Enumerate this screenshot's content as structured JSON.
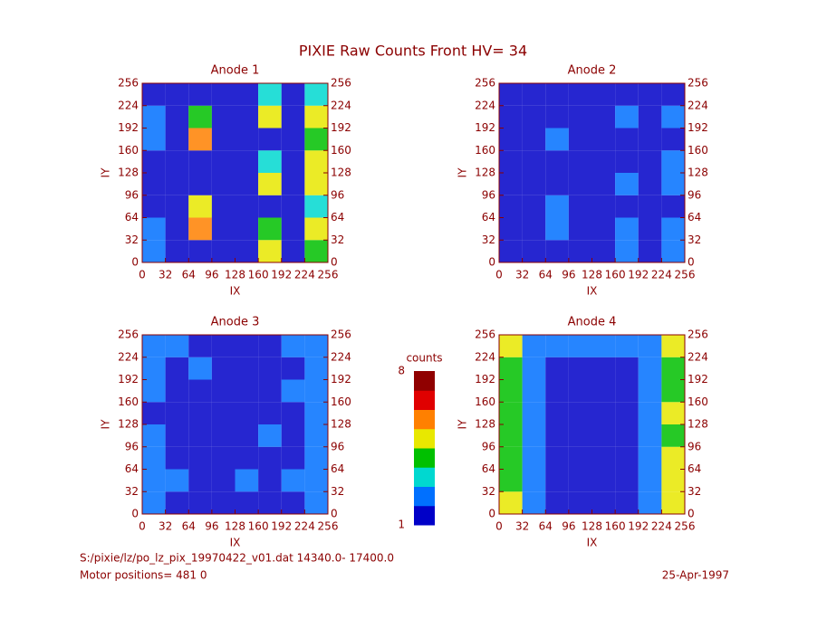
{
  "title": "PIXIE Raw Counts Front HV= 34",
  "chart_data": [
    {
      "type": "heatmap",
      "title": "Anode 1",
      "xlabel": "IX",
      "ylabel": "IY",
      "xlim": [
        0,
        256
      ],
      "ylim": [
        0,
        256
      ],
      "xticks": [
        0,
        32,
        64,
        96,
        128,
        160,
        192,
        224,
        256
      ],
      "yticks": [
        0,
        32,
        64,
        96,
        128,
        160,
        192,
        224,
        256
      ],
      "values": [
        [
          2,
          1,
          1,
          1,
          1,
          5,
          1,
          4
        ],
        [
          2,
          1,
          6,
          1,
          1,
          4,
          1,
          5
        ],
        [
          1,
          1,
          5,
          1,
          1,
          1,
          1,
          3
        ],
        [
          1,
          1,
          1,
          1,
          1,
          5,
          1,
          5
        ],
        [
          1,
          1,
          1,
          1,
          1,
          3,
          1,
          5
        ],
        [
          2,
          1,
          6,
          1,
          1,
          1,
          1,
          4
        ],
        [
          2,
          1,
          4,
          1,
          1,
          5,
          1,
          5
        ],
        [
          1,
          1,
          1,
          1,
          1,
          3,
          1,
          3
        ]
      ]
    },
    {
      "type": "heatmap",
      "title": "Anode 2",
      "xlabel": "IX",
      "ylabel": "IY",
      "xlim": [
        0,
        256
      ],
      "ylim": [
        0,
        256
      ],
      "xticks": [
        0,
        32,
        64,
        96,
        128,
        160,
        192,
        224,
        256
      ],
      "yticks": [
        0,
        32,
        64,
        96,
        128,
        160,
        192,
        224,
        256
      ],
      "values": [
        [
          1,
          1,
          1,
          1,
          1,
          2,
          1,
          2
        ],
        [
          1,
          1,
          2,
          1,
          1,
          2,
          1,
          2
        ],
        [
          1,
          1,
          2,
          1,
          1,
          1,
          1,
          1
        ],
        [
          1,
          1,
          1,
          1,
          1,
          2,
          1,
          2
        ],
        [
          1,
          1,
          1,
          1,
          1,
          1,
          1,
          2
        ],
        [
          1,
          1,
          2,
          1,
          1,
          1,
          1,
          1
        ],
        [
          1,
          1,
          1,
          1,
          1,
          2,
          1,
          2
        ],
        [
          1,
          1,
          1,
          1,
          1,
          1,
          1,
          1
        ]
      ]
    },
    {
      "type": "heatmap",
      "title": "Anode 3",
      "xlabel": "IX",
      "ylabel": "IY",
      "xlim": [
        0,
        256
      ],
      "ylim": [
        0,
        256
      ],
      "xticks": [
        0,
        32,
        64,
        96,
        128,
        160,
        192,
        224,
        256
      ],
      "yticks": [
        0,
        32,
        64,
        96,
        128,
        160,
        192,
        224,
        256
      ],
      "values": [
        [
          2,
          1,
          1,
          1,
          1,
          1,
          1,
          2
        ],
        [
          2,
          2,
          1,
          1,
          2,
          1,
          2,
          2
        ],
        [
          2,
          1,
          1,
          1,
          1,
          1,
          1,
          2
        ],
        [
          2,
          1,
          1,
          1,
          1,
          2,
          1,
          2
        ],
        [
          1,
          1,
          1,
          1,
          1,
          1,
          1,
          2
        ],
        [
          2,
          1,
          1,
          1,
          1,
          1,
          2,
          2
        ],
        [
          2,
          1,
          2,
          1,
          1,
          1,
          1,
          2
        ],
        [
          2,
          2,
          1,
          1,
          1,
          1,
          2,
          2
        ]
      ]
    },
    {
      "type": "heatmap",
      "title": "Anode 4",
      "xlabel": "IX",
      "ylabel": "IY",
      "xlim": [
        0,
        256
      ],
      "ylim": [
        0,
        256
      ],
      "xticks": [
        0,
        32,
        64,
        96,
        128,
        160,
        192,
        224,
        256
      ],
      "yticks": [
        0,
        32,
        64,
        96,
        128,
        160,
        192,
        224,
        256
      ],
      "values": [
        [
          5,
          2,
          1,
          1,
          1,
          1,
          2,
          5
        ],
        [
          4,
          2,
          1,
          1,
          1,
          1,
          2,
          5
        ],
        [
          4,
          2,
          1,
          1,
          1,
          1,
          2,
          5
        ],
        [
          4,
          2,
          1,
          1,
          1,
          1,
          2,
          4
        ],
        [
          4,
          2,
          1,
          1,
          1,
          1,
          2,
          5
        ],
        [
          4,
          2,
          1,
          1,
          1,
          1,
          2,
          4
        ],
        [
          4,
          2,
          1,
          1,
          1,
          1,
          2,
          4
        ],
        [
          5,
          2,
          2,
          2,
          2,
          2,
          2,
          5
        ]
      ]
    }
  ],
  "colorbar": {
    "label": "counts",
    "range": [
      1,
      8
    ],
    "ticks": [
      1,
      8
    ],
    "colormap": [
      "#0000c8",
      "#0070ff",
      "#00d8d0",
      "#00c000",
      "#e8e800",
      "#ff8000",
      "#e00000",
      "#900000"
    ]
  },
  "footer": {
    "file": "S:/pixie/lz/po_lz_pix_19970422_v01.dat   14340.0- 17400.0",
    "motor": "Motor positions= 481 0",
    "date": "25-Apr-1997"
  }
}
